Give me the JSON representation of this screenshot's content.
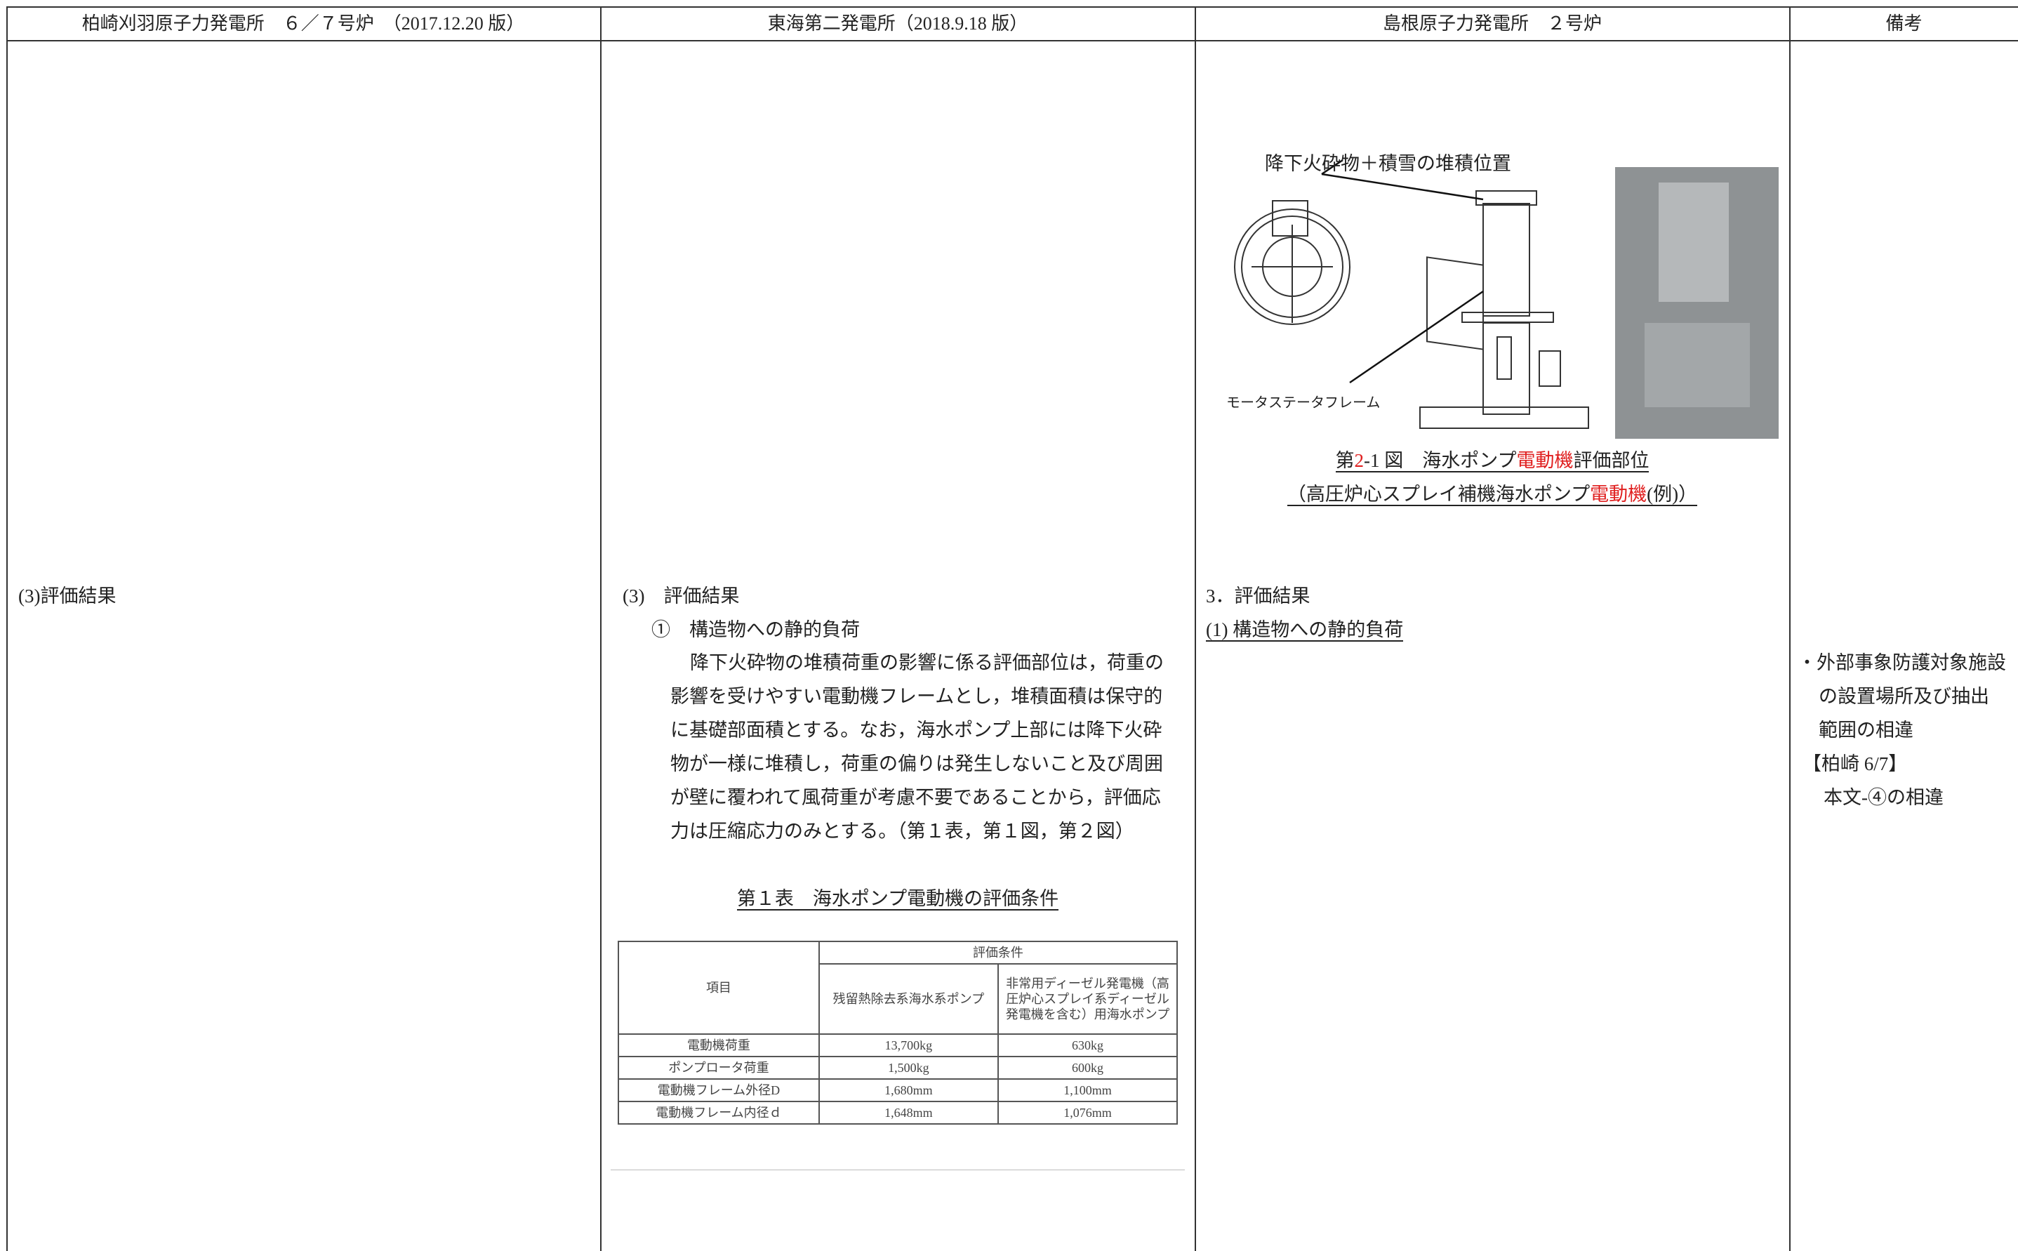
{
  "header": [
    "柏崎刈羽原子力発電所　６／７号炉　（2017.12.20 版）",
    "東海第二発電所（2018.9.18 版）",
    "島根原子力発電所　２号炉",
    "備考"
  ],
  "kk": {
    "heading": "(3)評価結果"
  },
  "tokai": {
    "heading": "(3)　評価結果",
    "subheading": "①　構造物への静的負荷",
    "paragraph": [
      "降下火砕物の堆積荷重の影響に係る評価部位は，荷重の",
      "影響を受けやすい電動機フレームとし，堆積面積は保守的",
      "に基礎部面積とする。なお，海水ポンプ上部には降下火砕",
      "物が一様に堆積し，荷重の偏りは発生しないこと及び周囲",
      "が壁に覆われて風荷重が考慮不要であることから，評価応",
      "力は圧縮応力のみとする。（第１表，第１図，第２図）"
    ],
    "table_title": "第１表　海水ポンプ電動機の評価条件",
    "table": {
      "item_header": "項目",
      "group_header": "評価条件",
      "columns": [
        "残留熱除去系海水系ポンプ",
        "非常用ディーゼル発電機（高圧炉心スプレイ系ディーゼル発電機を含む）用海水ポンプ"
      ],
      "rows": [
        [
          "電動機荷重",
          "13,700kg",
          "630kg"
        ],
        [
          "ポンプロータ荷重",
          "1,500kg",
          "600kg"
        ],
        [
          "電動機フレーム外径D",
          "1,680mm",
          "1,100mm"
        ],
        [
          "電動機フレーム内径ｄ",
          "1,648mm",
          "1,076mm"
        ]
      ]
    }
  },
  "shimane": {
    "figure_labels": [
      "降下火砕物＋積雪の堆積位置",
      "モータステータフレーム"
    ],
    "caption": [
      [
        {
          "text": "第"
        },
        {
          "text": "2",
          "color": "#e02020"
        },
        {
          "text": "-1 図　海水ポンプ"
        },
        {
          "text": "電動機",
          "color": "#e02020"
        },
        {
          "text": "評価部位"
        }
      ],
      [
        {
          "text": "（高圧炉心スプレイ補機海水ポンプ"
        },
        {
          "text": "電動機",
          "color": "#e02020"
        },
        {
          "text": "(例)）"
        }
      ]
    ],
    "heading": "3．評価結果",
    "subheading": "(1) 構造物への静的負荷"
  },
  "remarks": [
    "・外部事象防護対象施設",
    "の設置場所及び抽出",
    "範囲の相違",
    "【柏崎 6/7】",
    "本文-④の相違"
  ]
}
